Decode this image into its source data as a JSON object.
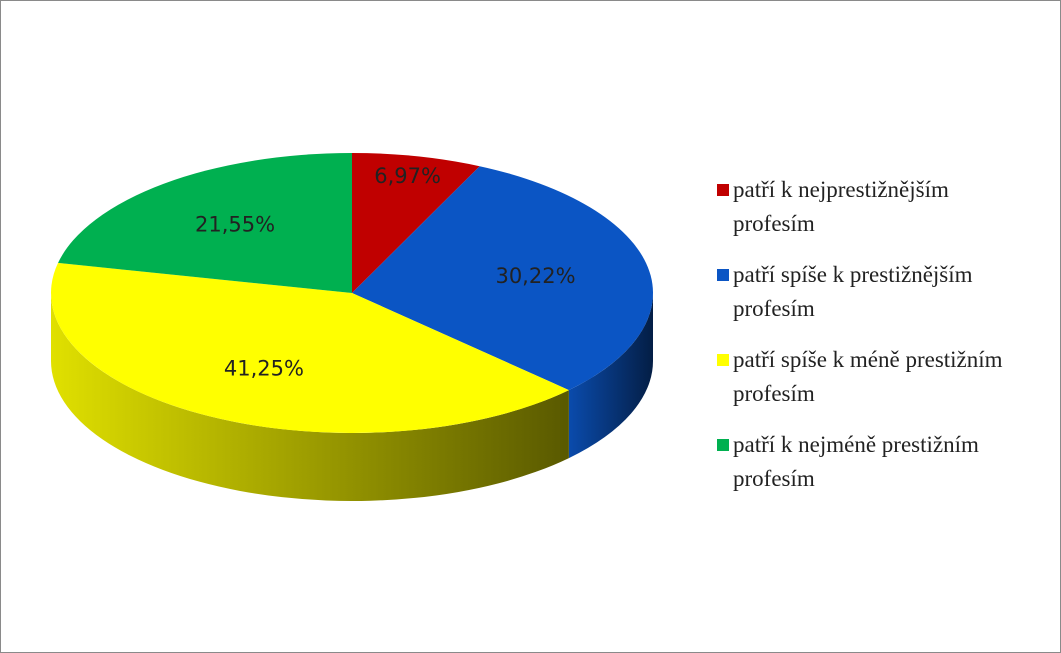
{
  "chart_data": {
    "type": "pie",
    "categories": [
      "patří k nejprestižnějším profesím",
      "patří spíše k prestižnějším profesím",
      "patří spíše k méně prestižním profesím",
      "patří k nejméně prestižním profesím"
    ],
    "values": [
      6.97,
      30.22,
      41.25,
      21.55
    ],
    "value_labels": [
      "6,97%",
      "30,22%",
      "41,25%",
      "21,55%"
    ],
    "colors": [
      "#c00000",
      "#0b55c4",
      "#ffff00",
      "#00b050"
    ],
    "legend": "right"
  }
}
